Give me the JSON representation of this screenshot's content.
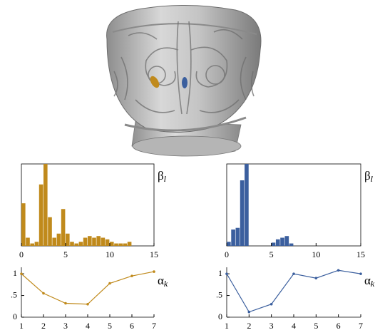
{
  "chart_data": [
    {
      "type": "histogram",
      "color": "#c08a1c",
      "bins": [
        0,
        0.5,
        1,
        1.5,
        2,
        2.5,
        3,
        3.5,
        4,
        4.5,
        5,
        5.5,
        6,
        6.5,
        7,
        7.5,
        8,
        8.5,
        9,
        9.5,
        10,
        10.5,
        11,
        11.5,
        12,
        12.5,
        13,
        13.5,
        14,
        14.5,
        15
      ],
      "values": [
        0.52,
        0.1,
        0.03,
        0.05,
        0.75,
        1.0,
        0.35,
        0.1,
        0.15,
        0.45,
        0.15,
        0.05,
        0.03,
        0.05,
        0.1,
        0.12,
        0.1,
        0.12,
        0.1,
        0.08,
        0.05,
        0.03,
        0.03,
        0.03,
        0.05,
        0,
        0,
        0,
        0,
        0
      ],
      "xlim": [
        0,
        15
      ],
      "ylim": [
        0,
        1
      ],
      "xticks": [
        0,
        5,
        10,
        15
      ],
      "ylabel": {
        "symbol": "β",
        "subscript": "l"
      }
    },
    {
      "type": "histogram",
      "color": "#3b5f9e",
      "bins": [
        0,
        0.5,
        1,
        1.5,
        2,
        2.5,
        3,
        3.5,
        4,
        4.5,
        5,
        5.5,
        6,
        6.5,
        7,
        7.5,
        8,
        8.5,
        9,
        9.5,
        10,
        10.5,
        11,
        11.5,
        12,
        12.5,
        13,
        13.5,
        14,
        14.5,
        15
      ],
      "values": [
        0.05,
        0.2,
        0.22,
        0.8,
        1.0,
        0,
        0,
        0,
        0,
        0,
        0.04,
        0.08,
        0.1,
        0.12,
        0.03,
        0,
        0,
        0,
        0,
        0,
        0,
        0,
        0,
        0,
        0,
        0,
        0,
        0,
        0,
        0
      ],
      "xlim": [
        0,
        15
      ],
      "ylim": [
        0,
        1
      ],
      "xticks": [
        0,
        5,
        10,
        15
      ],
      "ylabel": {
        "symbol": "β",
        "subscript": "l"
      }
    },
    {
      "type": "line",
      "color": "#c08a1c",
      "x": [
        1,
        2,
        3,
        4,
        5,
        6,
        7
      ],
      "values": [
        1.0,
        0.55,
        0.32,
        0.3,
        0.78,
        0.95,
        1.05
      ],
      "xlim": [
        1,
        7
      ],
      "ylim": [
        0,
        1.15
      ],
      "xticks": [
        1,
        2,
        3,
        4,
        5,
        6,
        7
      ],
      "yticks": [
        0,
        {
          "value": 0.5,
          "label": ".5"
        },
        1
      ],
      "ylabel": {
        "symbol": "α",
        "subscript": "k"
      }
    },
    {
      "type": "line",
      "color": "#3b5f9e",
      "x": [
        1,
        2,
        3,
        4,
        5,
        6,
        7
      ],
      "values": [
        1.0,
        0.12,
        0.3,
        1.0,
        0.9,
        1.08,
        1.0
      ],
      "xlim": [
        1,
        7
      ],
      "ylim": [
        0,
        1.15
      ],
      "xticks": [
        1,
        2,
        3,
        4,
        5,
        6,
        7
      ],
      "yticks": [
        0,
        {
          "value": 0.5,
          "label": ".5"
        },
        1
      ],
      "ylabel": {
        "symbol": "α",
        "subscript": "k"
      }
    }
  ]
}
